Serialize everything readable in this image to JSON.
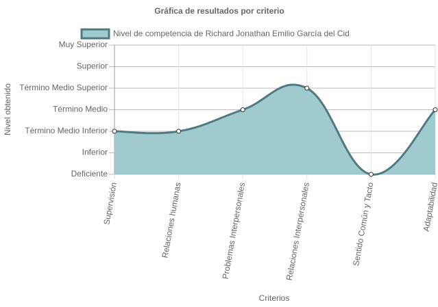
{
  "chart_data": {
    "type": "line",
    "title": "Gráfica de resultados por criterio",
    "x_label": "Criterios",
    "y_label": "Nivel obtenido",
    "categories": [
      "Supervisión",
      "Relaciones humanas",
      "Problemas Interpersonales",
      "Relaciones Interpersonales",
      "Sentido Común y Tacto",
      "Adaptabilidad"
    ],
    "series": [
      {
        "name": "Nivel de competencia de Richard Jonathan Emilio García del Cid",
        "color": "#4f7a80",
        "fill": "#9fcbcf",
        "values": [
          3,
          3,
          4,
          5,
          1,
          4
        ]
      }
    ],
    "ylim": [
      1,
      7
    ],
    "yticks": [
      {
        "value": 1,
        "label": "Deficiente"
      },
      {
        "value": 2,
        "label": "Inferior"
      },
      {
        "value": 3,
        "label": "Término Medio Inferior"
      },
      {
        "value": 4,
        "label": "Término Medio"
      },
      {
        "value": 5,
        "label": "Término Medio Superior"
      },
      {
        "value": 6,
        "label": "Superior"
      },
      {
        "value": 7,
        "label": "Muy Superior"
      }
    ],
    "grid": true
  }
}
